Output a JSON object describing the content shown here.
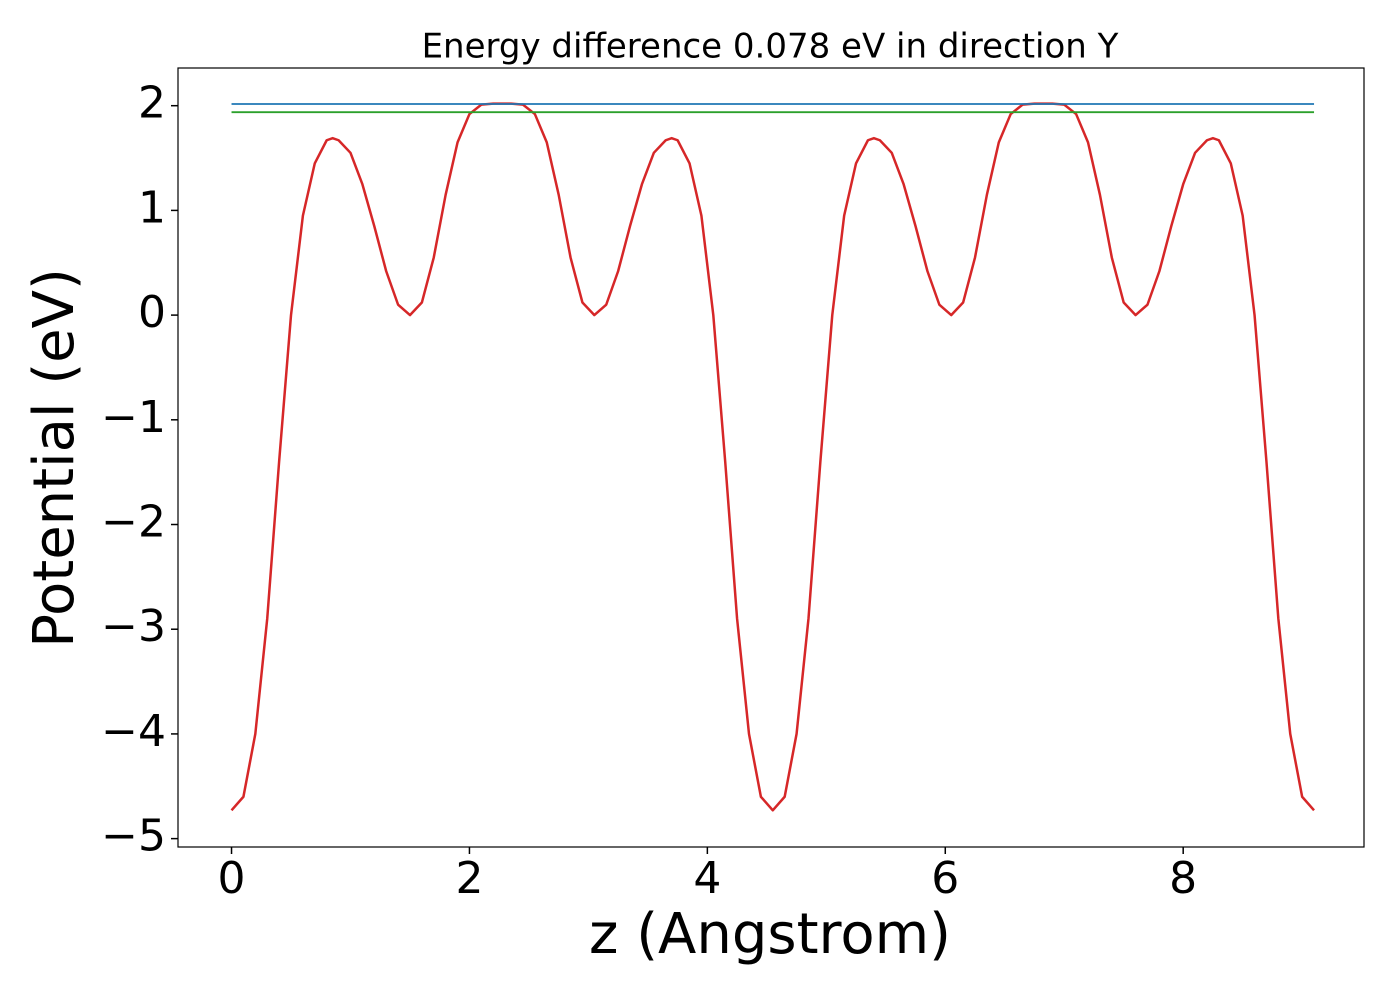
{
  "chart_data": {
    "type": "line",
    "title": "Energy difference 0.078 eV in direction Y",
    "x_label": "z (Angstrom)",
    "y_label": "Potential (eV)",
    "xlim": [
      -0.45,
      9.52
    ],
    "ylim": [
      -5.08,
      2.36
    ],
    "xticks": [
      0,
      2,
      4,
      6,
      8
    ],
    "yticks": [
      {
        "value": -5,
        "label": "−5"
      },
      {
        "value": -4,
        "label": "−4"
      },
      {
        "value": -3,
        "label": "−3"
      },
      {
        "value": -2,
        "label": "−2"
      },
      {
        "value": -1,
        "label": "−1"
      },
      0,
      1,
      2
    ],
    "grid": false,
    "series": [
      {
        "color": "#d62728",
        "x": [
          0,
          0.1,
          0.2,
          0.3,
          0.4,
          0.5,
          0.6,
          0.7,
          0.8,
          0.85,
          0.9,
          1.0,
          1.1,
          1.2,
          1.3,
          1.4,
          1.5,
          1.6,
          1.7,
          1.8,
          1.9,
          2.0,
          2.1,
          2.2,
          2.35,
          2.45,
          2.55,
          2.65,
          2.75,
          2.85,
          2.95,
          3.05,
          3.15,
          3.25,
          3.35,
          3.45,
          3.55,
          3.65,
          3.7,
          3.75,
          3.85,
          3.95,
          4.05,
          4.15,
          4.25,
          4.35,
          4.45,
          4.55,
          4.65,
          4.75,
          4.85,
          4.95,
          5.05,
          5.15,
          5.25,
          5.35,
          5.4,
          5.45,
          5.55,
          5.65,
          5.75,
          5.85,
          5.95,
          6.05,
          6.15,
          6.25,
          6.35,
          6.45,
          6.55,
          6.65,
          6.75,
          6.9,
          7.0,
          7.1,
          7.2,
          7.3,
          7.4,
          7.5,
          7.6,
          7.7,
          7.8,
          7.9,
          8.0,
          8.1,
          8.2,
          8.25,
          8.3,
          8.4,
          8.5,
          8.6,
          8.7,
          8.8,
          8.9,
          9.0,
          9.1
        ],
        "values": [
          -4.73,
          -4.6,
          -4.0,
          -2.9,
          -1.4,
          0.0,
          0.95,
          1.45,
          1.67,
          1.69,
          1.67,
          1.55,
          1.25,
          0.85,
          0.42,
          0.1,
          0.0,
          0.12,
          0.55,
          1.15,
          1.65,
          1.92,
          2.01,
          2.02,
          2.02,
          2.01,
          1.92,
          1.65,
          1.15,
          0.55,
          0.12,
          0.0,
          0.1,
          0.42,
          0.85,
          1.25,
          1.55,
          1.67,
          1.69,
          1.67,
          1.45,
          0.95,
          0.0,
          -1.4,
          -2.9,
          -4.0,
          -4.6,
          -4.73,
          -4.6,
          -4.0,
          -2.9,
          -1.4,
          0.0,
          0.95,
          1.45,
          1.67,
          1.69,
          1.67,
          1.55,
          1.25,
          0.85,
          0.42,
          0.1,
          0.0,
          0.12,
          0.55,
          1.15,
          1.65,
          1.92,
          2.01,
          2.02,
          2.02,
          2.01,
          1.92,
          1.65,
          1.15,
          0.55,
          0.12,
          0.0,
          0.1,
          0.42,
          0.85,
          1.25,
          1.55,
          1.67,
          1.69,
          1.67,
          1.45,
          0.95,
          0.0,
          -1.4,
          -2.9,
          -4.0,
          -4.6,
          -4.73
        ]
      },
      {
        "color": "#1f77b4",
        "x": [
          0,
          9.1
        ],
        "values": [
          2.016,
          2.016
        ]
      },
      {
        "color": "#2ca02c",
        "x": [
          0,
          9.1
        ],
        "values": [
          1.938,
          1.938
        ]
      }
    ]
  }
}
